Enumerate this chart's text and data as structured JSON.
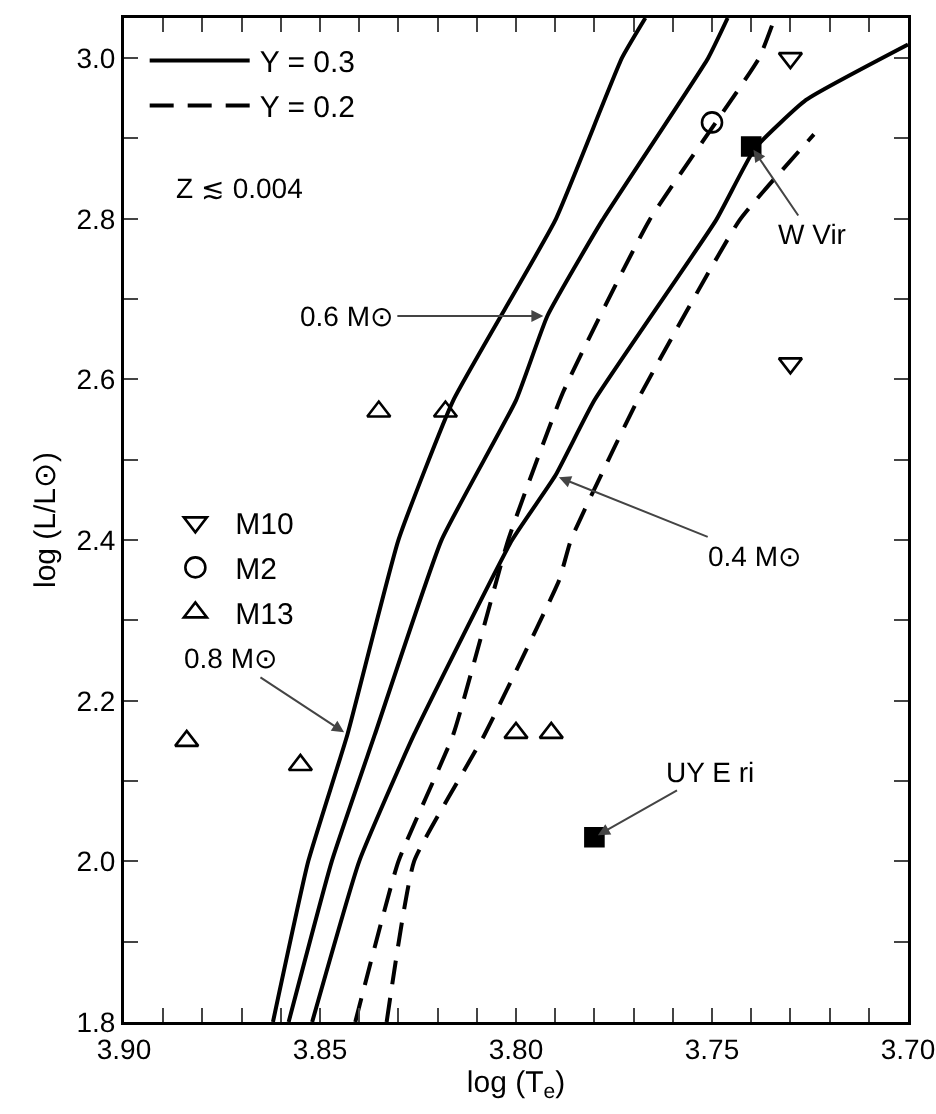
{
  "chart_data": {
    "type": "line",
    "xlabel": "log (T$_{e}$)",
    "ylabel": "log (L/L⊙)",
    "xlim": [
      3.9,
      3.7
    ],
    "ylim": [
      1.8,
      3.05
    ],
    "xticks": [
      {
        "value": 3.9,
        "label": "3.90"
      },
      {
        "value": 3.89,
        "label": null
      },
      {
        "value": 3.88,
        "label": null
      },
      {
        "value": 3.87,
        "label": null
      },
      {
        "value": 3.86,
        "label": null
      },
      3.85,
      {
        "value": 3.84,
        "label": null
      },
      {
        "value": 3.83,
        "label": null
      },
      {
        "value": 3.82,
        "label": null
      },
      {
        "value": 3.81,
        "label": null
      },
      {
        "value": 3.8,
        "label": "3.80"
      },
      {
        "value": 3.79,
        "label": null
      },
      {
        "value": 3.78,
        "label": null
      },
      {
        "value": 3.77,
        "label": null
      },
      {
        "value": 3.76,
        "label": null
      },
      3.75,
      {
        "value": 3.74,
        "label": null
      },
      {
        "value": 3.73,
        "label": null
      },
      {
        "value": 3.72,
        "label": null
      },
      {
        "value": 3.71,
        "label": null
      },
      {
        "value": 3.7,
        "label": "3.70"
      }
    ],
    "yticks": [
      1.8,
      {
        "value": 1.9,
        "label": null
      },
      {
        "value": 2.0,
        "label": "2.0"
      },
      {
        "value": 2.1,
        "label": null
      },
      2.2,
      {
        "value": 2.3,
        "label": null
      },
      2.4,
      {
        "value": 2.5,
        "label": null
      },
      2.6,
      {
        "value": 2.7,
        "label": null
      },
      2.8,
      {
        "value": 2.9,
        "label": null
      },
      {
        "value": 3.0,
        "label": "3.0"
      }
    ],
    "grid": false,
    "legend": "top left",
    "series": [
      {
        "name": "Y = 0.3",
        "line_style": "solid",
        "color": "#000000",
        "x": [
          3.862,
          3.853,
          3.843,
          3.83,
          3.816,
          3.79,
          3.773,
          3.767
        ],
        "values": [
          1.8,
          2.0,
          2.158,
          2.4,
          2.574,
          2.798,
          3.0,
          3.05
        ]
      },
      {
        "line_style": "solid",
        "color": "#000000",
        "x": [
          3.858,
          3.847,
          3.836,
          3.819,
          3.8,
          3.792,
          3.778,
          3.751,
          3.746
        ],
        "values": [
          1.8,
          2.0,
          2.158,
          2.4,
          2.574,
          2.679,
          2.798,
          3.0,
          3.05
        ]
      },
      {
        "line_style": "solid",
        "color": "#000000",
        "x": [
          3.852,
          3.84,
          3.826,
          3.801,
          3.79,
          3.78,
          3.749,
          3.739,
          3.726,
          3.7
        ],
        "values": [
          1.8,
          2.0,
          2.158,
          2.4,
          2.48,
          2.574,
          2.798,
          2.888,
          2.948,
          3.017
        ]
      },
      {
        "name": "Y = 0.2",
        "line_style": "dashed",
        "color": "#000000",
        "x": [
          3.841,
          3.83,
          3.816,
          3.802,
          3.788,
          3.766,
          3.738,
          3.734
        ],
        "values": [
          1.8,
          2.0,
          2.158,
          2.4,
          2.584,
          2.798,
          3.0,
          3.05
        ]
      },
      {
        "line_style": "dashed",
        "color": "#000000",
        "x": [
          3.833,
          3.826,
          3.808,
          3.789,
          3.786,
          3.769,
          3.743,
          3.724
        ],
        "values": [
          1.8,
          2.0,
          2.158,
          2.35,
          2.4,
          2.574,
          2.798,
          2.905
        ]
      },
      {
        "name": "M10",
        "type": "scatter",
        "marker": "triangle-down",
        "color": "#000000",
        "x": [
          3.73,
          3.73
        ],
        "values": [
          3.0,
          2.62
        ]
      },
      {
        "name": "M2",
        "type": "scatter",
        "marker": "circle",
        "color": "#000000",
        "x": [
          3.75
        ],
        "values": [
          2.92
        ]
      },
      {
        "name": "M13",
        "type": "scatter",
        "marker": "triangle",
        "color": "#000000",
        "x": [
          3.835,
          3.818,
          3.884,
          3.855,
          3.8,
          3.791
        ],
        "values": [
          2.56,
          2.56,
          2.15,
          2.12,
          2.16,
          2.16
        ]
      },
      {
        "type": "scatter",
        "marker": "square",
        "color": "#000000",
        "x": [
          3.74,
          3.78
        ],
        "values": [
          2.89,
          2.03
        ]
      }
    ],
    "annotations": [
      "Z ≲ 0.004",
      {
        "text": "0.6 M⊙",
        "x": 3.792,
        "y": 2.679
      },
      {
        "text": "0.4 M⊙",
        "x": 3.79,
        "y": 2.48
      },
      {
        "text": "0.8 M⊙",
        "x": 3.843,
        "y": 2.158
      },
      {
        "text": "W Vir",
        "x": 3.74,
        "y": 2.89
      },
      {
        "text": "UY E ri",
        "x": 3.78,
        "y": 2.03
      }
    ]
  }
}
